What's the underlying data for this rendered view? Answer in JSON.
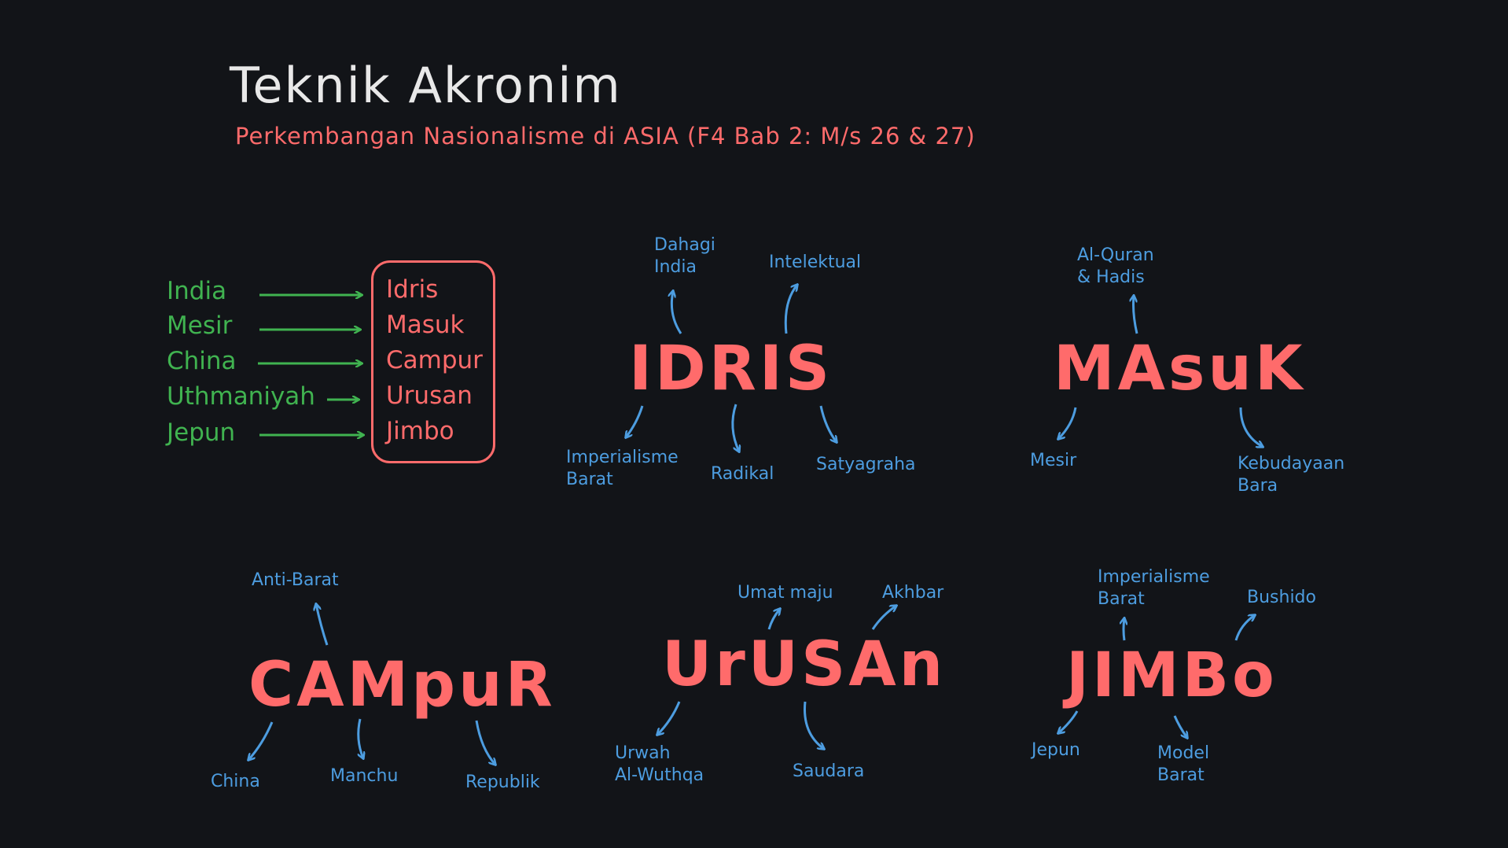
{
  "header": {
    "title": "Teknik Akronim",
    "subtitle": "Perkembangan Nasionalisme di ASIA (F4 Bab 2: M/s 26 & 27)"
  },
  "mapping": {
    "countries": [
      "India",
      "Mesir",
      "China",
      "Uthmaniyah",
      "Jepun"
    ],
    "words": [
      "Idris",
      "Masuk",
      "Campur",
      "Urusan",
      "Jimbo"
    ]
  },
  "clusters": {
    "idris": {
      "word": "IDRIS",
      "l1": "Dahagi",
      "l1b": "India",
      "l2": "Intelektual",
      "l3": "Imperialisme",
      "l3b": "Barat",
      "l4": "Radikal",
      "l5": "Satyagraha"
    },
    "masuk": {
      "word": "MAsuK",
      "l1": "Al-Quran",
      "l1b": "& Hadis",
      "l2": "Mesir",
      "l3": "Kebudayaan",
      "l3b": "Bara"
    },
    "campur": {
      "word": "CAMpuR",
      "l1": "Anti-Barat",
      "l2": "China",
      "l3": "Manchu",
      "l4": "Republik"
    },
    "urusan": {
      "word": "UrUSAn",
      "l1": "Umat maju",
      "l2": "Akhbar",
      "l3": "Urwah",
      "l3b": "Al-Wuthqa",
      "l4": "Saudara"
    },
    "jimbo": {
      "word": "JIMBo",
      "l1": "Imperialisme",
      "l1b": "Barat",
      "l2": "Bushido",
      "l3": "Jepun",
      "l4": "Model",
      "l4b": "Barat"
    }
  },
  "colors": {
    "background": "#121418",
    "accent": "#ff6b6b",
    "green": "#40b350",
    "blue": "#4d9de0",
    "title": "#e8e8e8"
  }
}
